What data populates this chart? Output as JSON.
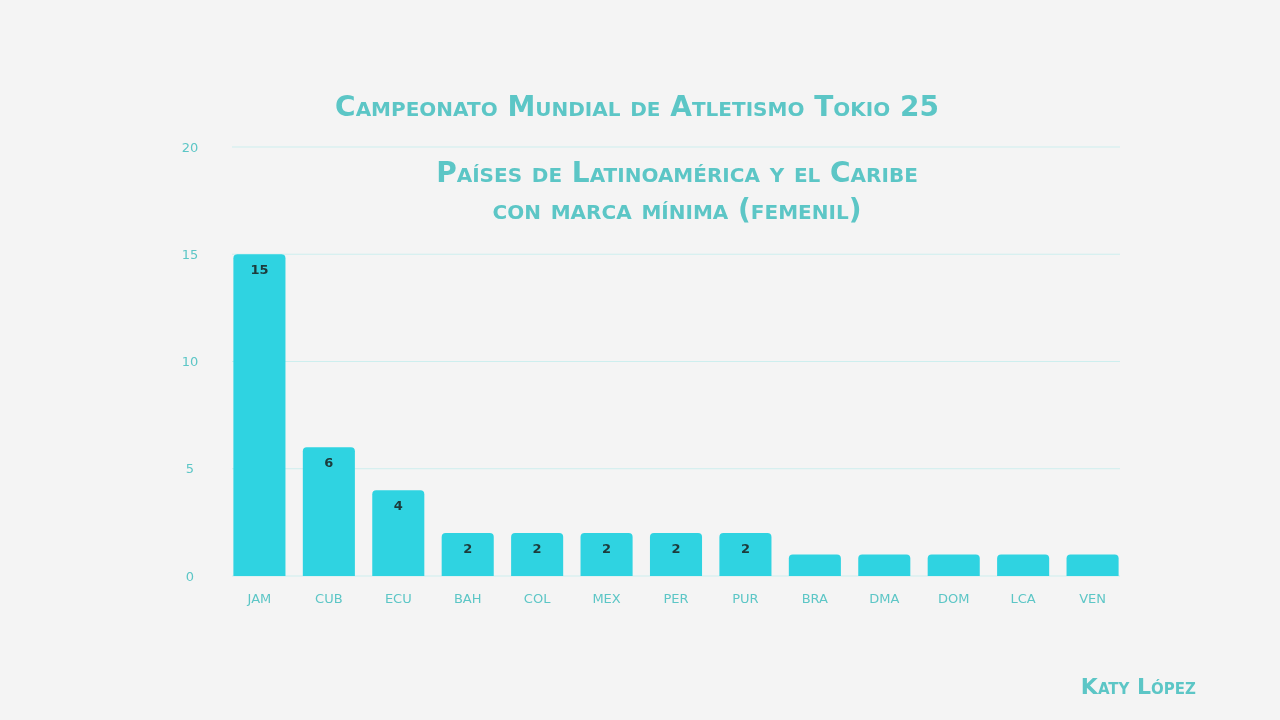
{
  "chart_data": {
    "type": "bar",
    "title": "Campeonato Mundial de Atletismo Tokio 25",
    "subtitle": "Países de Latinoamérica y el Caribe\ncon marca mínima (femenil)",
    "categories": [
      "JAM",
      "CUB",
      "ECU",
      "BAH",
      "COL",
      "MEX",
      "PER",
      "PUR",
      "BRA",
      "DMA",
      "DOM",
      "LCA",
      "VEN"
    ],
    "values": [
      15,
      6,
      4,
      2,
      2,
      2,
      2,
      2,
      1,
      1,
      1,
      1,
      1
    ],
    "value_labels": [
      "15",
      "6",
      "4",
      "2",
      "2",
      "2",
      "2",
      "2",
      null,
      null,
      null,
      null,
      null
    ],
    "color": "#2fd3e1",
    "ylim": [
      0,
      20
    ],
    "yticks": [
      0,
      5,
      10,
      15,
      20
    ],
    "grid": "y",
    "annotations": [
      "Katy López"
    ]
  }
}
